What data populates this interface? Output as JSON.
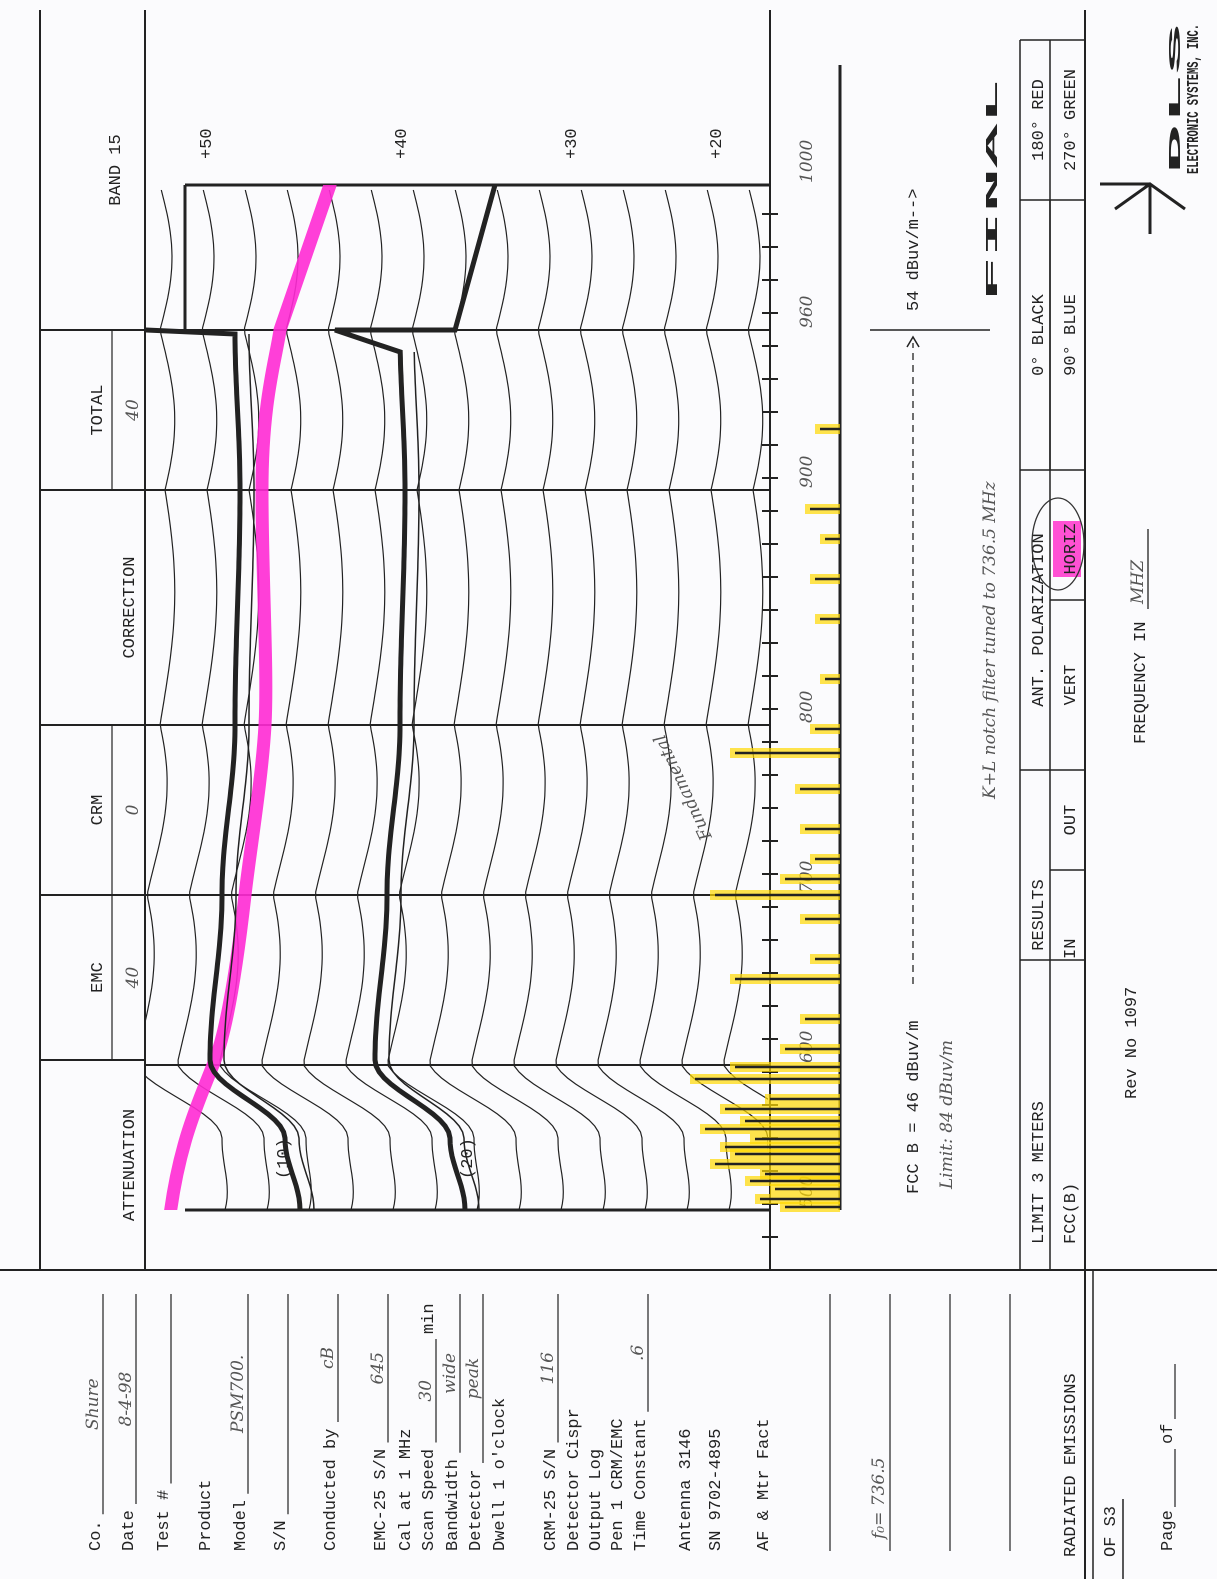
{
  "header": {
    "columns": [
      {
        "label": "ATTENUATION"
      },
      {
        "label": "EMC",
        "value": "40"
      },
      {
        "label": "CRM",
        "value": "0"
      },
      {
        "label": "CORRECTION"
      },
      {
        "label": "TOTAL",
        "value": "40"
      }
    ],
    "band": "BAND 15"
  },
  "form": {
    "fields": [
      {
        "label": "Co.",
        "value": "Shure"
      },
      {
        "label": "Date",
        "value": "8-4-98"
      },
      {
        "label": "Test #"
      },
      {
        "label": "Product"
      },
      {
        "label": "Model",
        "value": "PSM700."
      },
      {
        "label": "S/N"
      },
      {
        "label": "Conducted by",
        "value": "cB"
      },
      {
        "label": "EMC-25 S/N",
        "value": "645"
      },
      {
        "label": "Cal at 1 MHz"
      },
      {
        "label": "Scan Speed",
        "value": "30",
        "suffix": "min"
      },
      {
        "label": "Bandwidth",
        "value": "wide"
      },
      {
        "label": "Detector",
        "value": "peak"
      },
      {
        "label": "Dwell 1 o'clock"
      },
      {
        "label": "CRM-25 S/N",
        "value": "116"
      },
      {
        "label": "Detector Cispr"
      },
      {
        "label": "Output Log"
      },
      {
        "label": "Pen 1 CRM/EMC"
      },
      {
        "label": "Time Constant",
        "value": ".6"
      },
      {
        "label": "Antenna 3146"
      },
      {
        "label": "SN 9702-4895"
      },
      {
        "label": "AF & Mtr Fact"
      }
    ],
    "note": "f₀= 736.5",
    "report": "RADIATED EMISSIONS",
    "sheet": "OF S3",
    "page": "Page",
    "of": "of"
  },
  "graph": {
    "db_labels": [
      "+50",
      "+40",
      "+30",
      "+20"
    ],
    "freq_labels": [
      "500",
      "600",
      "700",
      "800",
      "900",
      "960",
      "1000"
    ],
    "markers": [
      "(10)",
      "(20)"
    ],
    "fundamental": "Fundamental"
  },
  "notes": {
    "fcc": "FCC B = 46 dBuv/m",
    "fcc_upper": "54 dBuv/m-->",
    "limit": "Limit: 84 dBuv/m",
    "notch": "K+L notch filter tuned to 736.5 MHz",
    "final": "FINAL"
  },
  "table": {
    "limit": "LIMIT 3 METERS",
    "limit_value": "FCC(B)",
    "results": "RESULTS",
    "results_in": "IN",
    "results_out": "OUT",
    "polarization": "ANT. POLARIZATION",
    "vert": "VERT",
    "horiz": "HORIZ",
    "angles": [
      [
        "0° BLACK",
        "90° BLUE"
      ],
      [
        "180° RED",
        "270° GREEN"
      ]
    ]
  },
  "footer": {
    "rev": "Rev No 1097",
    "frequency": "FREQUENCY IN",
    "unit": "MHZ",
    "logo": "DLS",
    "company": "ELECTRONIC SYSTEMS, INC."
  }
}
